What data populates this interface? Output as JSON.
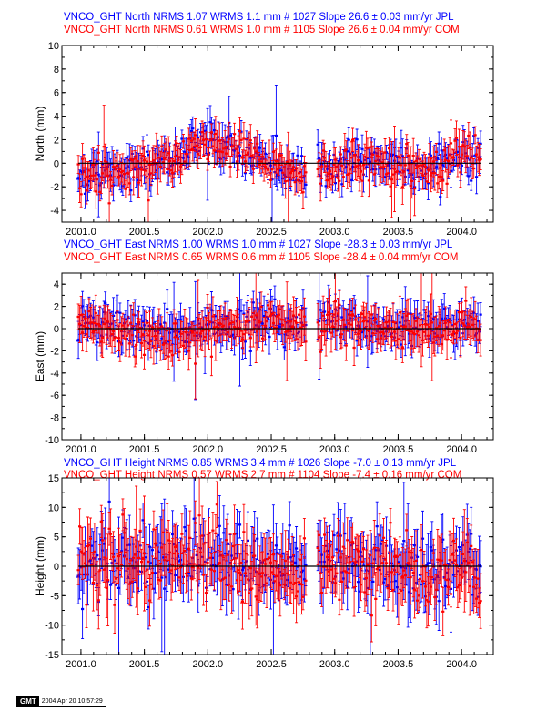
{
  "panels": [
    {
      "key": "north",
      "title_jpl": "VNCO_GHT North NRMS 1.07 WRMS  1.1 mm # 1027 Slope   26.6 ±  0.03 mm/yr JPL",
      "title_com": "VNCO_GHT North NRMS 0.61 WRMS  1.0 mm # 1105 Slope   26.6 ±  0.04 mm/yr COM",
      "ylabel": "North (mm)",
      "yticks": [
        "-4",
        "-2",
        "0",
        "2",
        "4",
        "6",
        "8",
        "10"
      ]
    },
    {
      "key": "east",
      "title_jpl": "VNCO_GHT East NRMS 1.00 WRMS  1.0 mm # 1027 Slope  -28.3 ±  0.03 mm/yr JPL",
      "title_com": "VNCO_GHT East NRMS 0.65 WRMS  0.6 mm # 1105 Slope  -28.4 ±  0.04 mm/yr COM",
      "ylabel": "East (mm)",
      "yticks": [
        "-10",
        "-8",
        "-6",
        "-4",
        "-2",
        "0",
        "2",
        "4"
      ]
    },
    {
      "key": "height",
      "title_jpl": "VNCO_GHT Height NRMS 0.85 WRMS  3.4 mm # 1026 Slope   -7.0 ±  0.13 mm/yr JPL",
      "title_com": "VNCO_GHT Height NRMS 0.57 WRMS  2.7 mm # 1104 Slope   -7.4 ±  0.16 mm/yr COM",
      "ylabel": "Height (mm)",
      "yticks": [
        "-15",
        "-10",
        "-5",
        "0",
        "5",
        "10",
        "15"
      ]
    }
  ],
  "xticks": [
    "2001.0",
    "2001.5",
    "2002.0",
    "2002.5",
    "2003.0",
    "2003.5",
    "2004.0"
  ],
  "colors": {
    "jpl": "#0000ff",
    "com": "#ff0000",
    "axis": "#000000"
  },
  "footer": {
    "logo": "GMT",
    "timestamp": "2004 Apr 20 10:57:29"
  },
  "chart_data": [
    {
      "type": "scatter",
      "ylabel": "North (mm)",
      "xlim": [
        2000.85,
        2004.25
      ],
      "ylim": [
        -5,
        10
      ],
      "grid": false,
      "error_bars": true,
      "zero_line": true,
      "series": [
        {
          "name": "JPL",
          "color": "#0000ff",
          "n": 1027,
          "wrms_mm": 1.1,
          "nrms": 1.07,
          "slope_mm_yr": 26.6,
          "slope_sigma": 0.03,
          "x": [
            2001.0,
            2001.25,
            2001.5,
            2001.75,
            2002.0,
            2002.25,
            2002.5,
            2002.75,
            2003.0,
            2003.25,
            2003.5,
            2003.75,
            2004.0,
            2004.13
          ],
          "y": [
            -1.0,
            -0.6,
            -0.2,
            0.6,
            1.8,
            1.2,
            0.1,
            -1.0,
            0.0,
            0.3,
            0.0,
            -0.6,
            0.8,
            0.5
          ]
        },
        {
          "name": "COM",
          "color": "#ff0000",
          "n": 1105,
          "wrms_mm": 1.0,
          "nrms": 0.61,
          "slope_mm_yr": 26.6,
          "slope_sigma": 0.04,
          "x": [
            2001.0,
            2001.25,
            2001.5,
            2001.75,
            2002.0,
            2002.25,
            2002.5,
            2002.75,
            2003.0,
            2003.25,
            2003.5,
            2003.75,
            2004.0,
            2004.13
          ],
          "y": [
            -1.2,
            -0.8,
            -0.3,
            0.5,
            1.6,
            1.1,
            0.0,
            -1.1,
            -0.1,
            0.2,
            -0.1,
            -0.7,
            0.7,
            0.4
          ]
        }
      ]
    },
    {
      "type": "scatter",
      "ylabel": "East (mm)",
      "xlim": [
        2000.85,
        2004.25
      ],
      "ylim": [
        -10,
        5
      ],
      "grid": false,
      "error_bars": true,
      "zero_line": true,
      "series": [
        {
          "name": "JPL",
          "color": "#0000ff",
          "n": 1027,
          "wrms_mm": 1.0,
          "nrms": 1.0,
          "slope_mm_yr": -28.3,
          "slope_sigma": 0.03,
          "x": [
            2001.0,
            2001.25,
            2001.5,
            2001.75,
            2002.0,
            2002.25,
            2002.5,
            2002.75,
            2003.0,
            2003.25,
            2003.5,
            2003.75,
            2004.0,
            2004.13
          ],
          "y": [
            0.5,
            0.2,
            -0.3,
            -0.5,
            0.2,
            0.6,
            0.8,
            0.3,
            0.5,
            0.3,
            0.4,
            0.0,
            0.2,
            -0.2
          ]
        },
        {
          "name": "COM",
          "color": "#ff0000",
          "n": 1105,
          "wrms_mm": 0.6,
          "nrms": 0.65,
          "slope_mm_yr": -28.4,
          "slope_sigma": 0.04,
          "x": [
            2001.0,
            2001.25,
            2001.5,
            2001.75,
            2002.0,
            2002.25,
            2002.5,
            2002.75,
            2003.0,
            2003.25,
            2003.5,
            2003.75,
            2004.0,
            2004.13
          ],
          "y": [
            0.3,
            0.0,
            -0.6,
            -0.9,
            -0.2,
            0.4,
            0.5,
            0.1,
            0.2,
            -0.1,
            0.1,
            -0.3,
            0.0,
            -0.4
          ]
        }
      ]
    },
    {
      "type": "scatter",
      "ylabel": "Height (mm)",
      "xlim": [
        2000.85,
        2004.25
      ],
      "ylim": [
        -15,
        15
      ],
      "grid": false,
      "error_bars": true,
      "zero_line": true,
      "series": [
        {
          "name": "JPL",
          "color": "#0000ff",
          "n": 1026,
          "wrms_mm": 3.4,
          "nrms": 0.85,
          "slope_mm_yr": -7.0,
          "slope_sigma": 0.13,
          "x": [
            2001.0,
            2001.25,
            2001.5,
            2001.75,
            2002.0,
            2002.25,
            2002.5,
            2002.75,
            2003.0,
            2003.25,
            2003.5,
            2003.75,
            2004.0,
            2004.13
          ],
          "y": [
            0.5,
            1.0,
            0.0,
            1.5,
            2.0,
            0.5,
            -0.5,
            -1.0,
            1.0,
            0.0,
            0.5,
            -1.0,
            1.0,
            0.0
          ]
        },
        {
          "name": "COM",
          "color": "#ff0000",
          "n": 1104,
          "wrms_mm": 2.7,
          "nrms": 0.57,
          "slope_mm_yr": -7.4,
          "slope_sigma": 0.16,
          "x": [
            2001.0,
            2001.25,
            2001.5,
            2001.75,
            2002.0,
            2002.25,
            2002.5,
            2002.75,
            2003.0,
            2003.25,
            2003.5,
            2003.75,
            2004.0,
            2004.13
          ],
          "y": [
            0.0,
            0.5,
            -0.5,
            1.0,
            1.5,
            0.0,
            -1.0,
            -1.5,
            0.5,
            -0.5,
            0.0,
            -1.5,
            0.5,
            -0.5
          ]
        }
      ]
    }
  ]
}
